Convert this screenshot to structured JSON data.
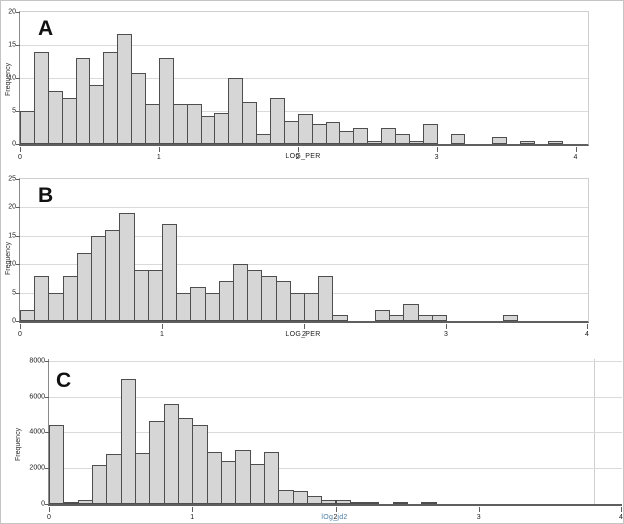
{
  "figure_title": "",
  "colors": {
    "bar_fill": "#d6d6d6",
    "bar_border": "#4e4e4e",
    "gridline": "#dadada",
    "axis": "#5f5f5f",
    "panel_c_xlabel": "#4a7ca8",
    "background": "#ffffff"
  },
  "chart_data": [
    {
      "type": "histogram",
      "panel_label": "A",
      "xlabel": "LOG_PER",
      "ylabel": "Frequency",
      "bin_start": 0,
      "bin_width": 0.1,
      "xlim": [
        0,
        4.09
      ],
      "ylim": [
        0,
        20
      ],
      "x_ticks": [
        0,
        1,
        2,
        3,
        4
      ],
      "y_ticks": [
        0,
        5,
        10,
        15,
        20
      ],
      "grid": true,
      "values": [
        5,
        14,
        8,
        7,
        13,
        9,
        14,
        16.7,
        10.8,
        6,
        13,
        6,
        6,
        4.3,
        4.7,
        10,
        6.4,
        1.5,
        7,
        3.5,
        4.5,
        3,
        3.3,
        2,
        2.5,
        0.5,
        2.5,
        1.5,
        0.5,
        3,
        0,
        1.5,
        0,
        0,
        1,
        0,
        0.5,
        0,
        0.5,
        0
      ]
    },
    {
      "type": "histogram",
      "panel_label": "B",
      "xlabel": "LOG_PER",
      "ylabel": "Frequency",
      "bin_start": 0,
      "bin_width": 0.1,
      "xlim": [
        0,
        4.0
      ],
      "ylim": [
        0,
        25
      ],
      "x_ticks": [
        0,
        1,
        2,
        3,
        4
      ],
      "y_ticks": [
        0,
        5,
        10,
        15,
        20,
        25
      ],
      "grid": true,
      "values": [
        2,
        8,
        5,
        8,
        12,
        15,
        16,
        19,
        9,
        9,
        17,
        5,
        6,
        5,
        7,
        10,
        9,
        8,
        7,
        5,
        5,
        8,
        1,
        0,
        0,
        2,
        1,
        3,
        1,
        1,
        0,
        0,
        0,
        0,
        1,
        0,
        0,
        0,
        0,
        0
      ]
    },
    {
      "type": "histogram",
      "panel_label": "C",
      "xlabel": "lOg_jd2",
      "ylabel": "Frequency",
      "bin_start": 0,
      "bin_width": 0.1,
      "xlim": [
        0,
        4.0
      ],
      "ylim": [
        0,
        8100
      ],
      "x_ticks": [
        0,
        1,
        2,
        3,
        4
      ],
      "y_ticks": [
        0,
        2000,
        4000,
        6000,
        8000
      ],
      "grid": true,
      "values": [
        4400,
        100,
        250,
        2200,
        2800,
        7000,
        2850,
        4650,
        5600,
        4800,
        4400,
        2900,
        2400,
        3000,
        2250,
        2900,
        800,
        750,
        450,
        200,
        250,
        100,
        50,
        0,
        50,
        0,
        50,
        0,
        0,
        0,
        0,
        0,
        0,
        0,
        0,
        0,
        0,
        0,
        0,
        0
      ]
    }
  ]
}
